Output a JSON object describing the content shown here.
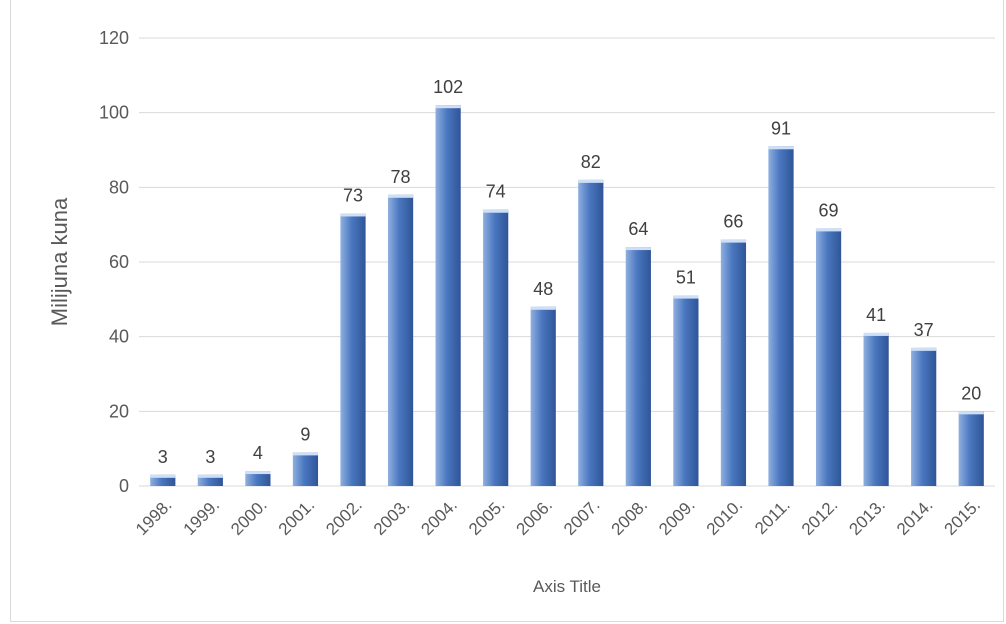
{
  "chart_data": {
    "type": "bar",
    "title": "",
    "xlabel": "Axis Title",
    "ylabel": "Milijuna kuna",
    "ylim": [
      0,
      120
    ],
    "yticks": [
      0,
      20,
      40,
      60,
      80,
      100,
      120
    ],
    "grid": true,
    "legend": "none",
    "categories": [
      "1998.",
      "1999.",
      "2000.",
      "2001.",
      "2002.",
      "2003.",
      "2004.",
      "2005.",
      "2006.",
      "2007.",
      "2008.",
      "2009.",
      "2010.",
      "2011.",
      "2012.",
      "2013.",
      "2014.",
      "2015."
    ],
    "values": [
      3,
      3,
      4,
      9,
      73,
      78,
      102,
      74,
      48,
      82,
      64,
      51,
      66,
      91,
      69,
      41,
      37,
      20
    ],
    "colors": {
      "bar_light": "#8fb0df",
      "bar_main": "#4a77c0",
      "bar_dark": "#2f5597",
      "bar_top": "#cfe0f6"
    }
  }
}
